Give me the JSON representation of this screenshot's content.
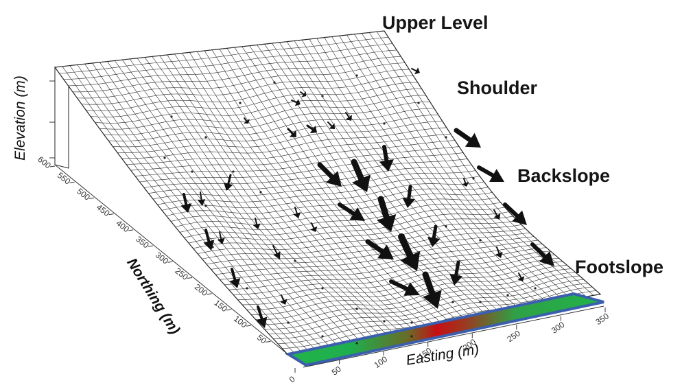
{
  "zones": [
    "Upper Level",
    "Shoulder",
    "Backslope",
    "Footslope"
  ],
  "axes": {
    "elevation_title": "Elevation (m)",
    "northing_title": "Northing (m)",
    "easting_title": "Easting (m)",
    "northing_ticks": [
      "600",
      "550",
      "500",
      "450",
      "400",
      "350",
      "300",
      "250",
      "200",
      "150",
      "100",
      "50"
    ],
    "easting_ticks": [
      "0",
      "50",
      "100",
      "150",
      "200",
      "250",
      "300",
      "350"
    ]
  },
  "colors": {
    "base_green": "#21b34a",
    "base_red": "#c70f14",
    "base_edge": "#3b5fae",
    "mesh": "#2a2a2a",
    "arrow": "#111111"
  }
}
